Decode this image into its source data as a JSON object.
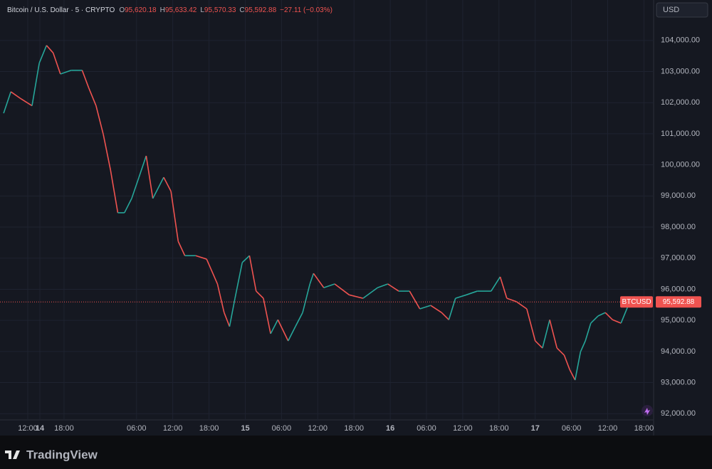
{
  "chart_data": {
    "type": "line",
    "title": "Bitcoin / U.S. Dollar · 5 · CRYPTO",
    "ohlc": [
      {
        "label": "O",
        "value": "95,620.18"
      },
      {
        "label": "H",
        "value": "95,633.42"
      },
      {
        "label": "L",
        "value": "95,570.33"
      },
      {
        "label": "C",
        "value": "95,592.88"
      }
    ],
    "change": "−27.11 (−0.03%)",
    "currency": "USD",
    "symbol": "BTCUSD",
    "last_price": {
      "value": 95592.88,
      "label": "95,592.88"
    },
    "up_color": "#26a69a",
    "down_color": "#ef5350",
    "grid": true,
    "x": [
      8.0,
      9.2,
      10.9,
      12.7,
      13.9,
      15.1,
      16.2,
      17.4,
      19.2,
      21.0,
      22.1,
      23.3,
      24.5,
      25.7,
      26.9,
      28.0,
      29.2,
      30.4,
      31.6,
      32.7,
      34.5,
      35.7,
      36.9,
      38.0,
      39.8,
      41.6,
      43.4,
      44.5,
      45.4,
      46.3,
      47.5,
      48.7,
      49.8,
      51.0,
      52.2,
      53.4,
      55.1,
      56.3,
      57.5,
      58.7,
      59.3,
      61.0,
      62.8,
      65.2,
      67.5,
      69.9,
      71.6,
      73.4,
      75.2,
      76.9,
      78.7,
      80.5,
      81.7,
      82.8,
      84.6,
      86.4,
      88.7,
      90.2,
      91.3,
      92.9,
      94.6,
      96.0,
      97.2,
      98.4,
      99.6,
      100.8,
      101.7,
      102.6,
      103.5,
      104.3,
      105.2,
      106.4,
      107.6,
      108.8,
      110.2,
      111.4,
      112.3
    ],
    "values": [
      101660,
      102350,
      102120,
      101900,
      103270,
      103840,
      103600,
      102920,
      103040,
      103040,
      102470,
      101900,
      100980,
      99830,
      98460,
      98460,
      98920,
      99600,
      100290,
      98920,
      99600,
      99150,
      97540,
      97080,
      97080,
      96970,
      96170,
      95250,
      94800,
      95710,
      96860,
      97080,
      95940,
      95710,
      94570,
      95020,
      94340,
      94800,
      95250,
      96170,
      96510,
      96050,
      96170,
      95820,
      95710,
      96050,
      96170,
      95940,
      95940,
      95370,
      95480,
      95250,
      95020,
      95710,
      95820,
      95940,
      95940,
      96400,
      95710,
      95600,
      95370,
      94340,
      94110,
      95020,
      94110,
      93880,
      93420,
      93080,
      93990,
      94340,
      94910,
      95140,
      95250,
      95020,
      94910,
      95480,
      95592.88
    ],
    "xlim": [
      7.4,
      115.6
    ],
    "xticks": [
      {
        "value": 12,
        "label": "12:00"
      },
      {
        "value": 18,
        "label": "18:00"
      },
      14,
      {
        "value": 30,
        "label": "06:00"
      },
      {
        "value": 36,
        "label": "12:00"
      },
      {
        "value": 42,
        "label": "18:00"
      },
      {
        "value": 48,
        "label": "15"
      },
      {
        "value": 54,
        "label": "06:00"
      },
      {
        "value": 60,
        "label": "12:00"
      },
      {
        "value": 66,
        "label": "18:00"
      },
      {
        "value": 72,
        "label": "16"
      },
      {
        "value": 78,
        "label": "06:00"
      },
      {
        "value": 84,
        "label": "12:00"
      },
      {
        "value": 90,
        "label": "18:00"
      },
      {
        "value": 96,
        "label": "17"
      },
      {
        "value": 102,
        "label": "06:00"
      },
      {
        "value": 108,
        "label": "12:00"
      },
      {
        "value": 114,
        "label": "18:00"
      }
    ],
    "ylim": [
      91800,
      105300
    ],
    "yticks": [
      {
        "value": 92000,
        "label": "92,000.00"
      },
      {
        "value": 93000,
        "label": "93,000.00"
      },
      {
        "value": 94000,
        "label": "94,000.00"
      },
      {
        "value": 95000,
        "label": "95,000.00"
      },
      {
        "value": 96000,
        "label": "96,000.00"
      },
      {
        "value": 97000,
        "label": "97,000.00"
      },
      {
        "value": 98000,
        "label": "98,000.00"
      },
      {
        "value": 99000,
        "label": "99,000.00"
      },
      {
        "value": 100000,
        "label": "100,000.00"
      },
      {
        "value": 101000,
        "label": "101,000.00"
      },
      {
        "value": 102000,
        "label": "102,000.00"
      },
      {
        "value": 103000,
        "label": "103,000.00"
      },
      {
        "value": 104000,
        "label": "104,000.00"
      }
    ],
    "brand": "TradingView"
  }
}
